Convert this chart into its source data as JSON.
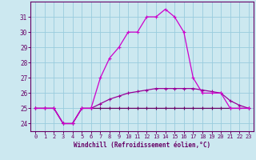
{
  "xlabel": "Windchill (Refroidissement éolien,°C)",
  "hours": [
    0,
    1,
    2,
    3,
    4,
    5,
    6,
    7,
    8,
    9,
    10,
    11,
    12,
    13,
    14,
    15,
    16,
    17,
    18,
    19,
    20,
    21,
    22,
    23
  ],
  "temp": [
    25,
    25,
    25,
    24,
    24,
    25,
    25,
    27,
    28.3,
    29,
    30,
    30,
    31,
    31,
    31.5,
    31,
    30,
    27,
    26,
    26,
    26,
    25,
    25,
    25
  ],
  "mid": [
    25,
    25,
    25,
    24,
    24,
    25,
    25,
    25.3,
    25.6,
    25.8,
    26.0,
    26.1,
    26.2,
    26.3,
    26.3,
    26.3,
    26.3,
    26.3,
    26.2,
    26.1,
    26.0,
    25.5,
    25.2,
    25
  ],
  "windchill": [
    25,
    25,
    25,
    24,
    24,
    25,
    25,
    25,
    25,
    25,
    25,
    25,
    25,
    25,
    25,
    25,
    25,
    25,
    25,
    25,
    25,
    25,
    25,
    25
  ],
  "color_top": "#cc00cc",
  "color_mid": "#990099",
  "color_low": "#660066",
  "bg_color": "#cce8f0",
  "grid_color": "#99ccdd",
  "ylim": [
    23.5,
    32.0
  ],
  "xlim": [
    -0.5,
    23.5
  ],
  "yticks": [
    24,
    25,
    26,
    27,
    28,
    29,
    30,
    31
  ],
  "xticks": [
    0,
    1,
    2,
    3,
    4,
    5,
    6,
    7,
    8,
    9,
    10,
    11,
    12,
    13,
    14,
    15,
    16,
    17,
    18,
    19,
    20,
    21,
    22,
    23
  ]
}
